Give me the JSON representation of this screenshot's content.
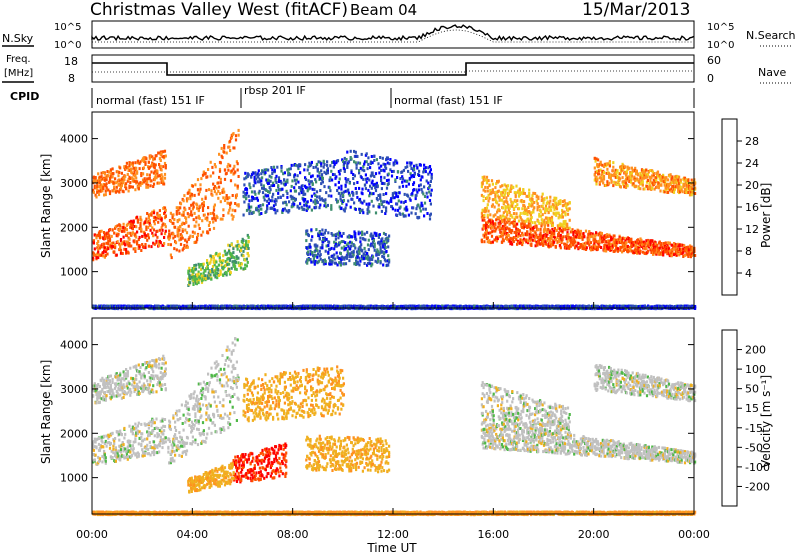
{
  "header": {
    "station": "Christmas Valley West (fitACF)",
    "beam": "Beam 04",
    "date": "15/Mar/2013"
  },
  "strips": {
    "nsky_label": "N.Sky",
    "nsearch_label": "N.Search",
    "nsky_ticks": [
      "10^5",
      "10^0"
    ],
    "nsearch_ticks": [
      "10^5",
      "10^0"
    ],
    "freq_label_line1": "Freq.",
    "freq_label_line2": "[MHz]",
    "freq_ticks": [
      "18",
      "8"
    ],
    "nave_label": "Nave",
    "nave_ticks": [
      "60",
      "0"
    ],
    "cpid_label": "CPID",
    "cpid_segments": [
      {
        "label": "normal (fast) 151 IF",
        "start_hour": 0,
        "end_hour": 6
      },
      {
        "label": "rbsp 201 IF",
        "start_hour": 6,
        "end_hour": 12
      },
      {
        "label": "normal (fast) 151 IF",
        "start_hour": 12,
        "end_hour": 24
      }
    ]
  },
  "chart_data": [
    {
      "type": "heatmap",
      "panel": "power",
      "ylabel": "Slant Range [km]",
      "xlabel": "Time UT",
      "xlim_hours": [
        0,
        24
      ],
      "ylim_km": [
        180,
        4600
      ],
      "yticks": [
        "1000",
        "2000",
        "3000",
        "4000"
      ],
      "xticks": [
        "00:00",
        "04:00",
        "08:00",
        "12:00",
        "16:00",
        "20:00",
        "00:00"
      ],
      "colorbar_label": "Power [dB]",
      "colorbar_ticks": [
        "4",
        "8",
        "12",
        "16",
        "20",
        "24",
        "28"
      ],
      "colorbar_colors": [
        "#0000ff",
        "#2d4fb5",
        "#3e8e6e",
        "#4fb848",
        "#f0d020",
        "#ff9020",
        "#ff5000",
        "#ff0000"
      ],
      "scatter_bands": [
        {
          "t0": 0.0,
          "t1": 2.9,
          "r0": 2700,
          "r1": 3200,
          "r1end": 3800,
          "power": 24
        },
        {
          "t0": 0.0,
          "t1": 2.9,
          "r0": 1300,
          "r1": 1900,
          "r1end": 2500,
          "power": 26
        },
        {
          "t0": 3.0,
          "t1": 5.8,
          "r0": 1300,
          "r1": 2300,
          "r1end": 4300,
          "power": 24
        },
        {
          "t0": 3.8,
          "t1": 6.2,
          "r0": 700,
          "r1": 1100,
          "r1end": 1900,
          "power": 14
        },
        {
          "t0": 6.0,
          "t1": 10.0,
          "r0": 2300,
          "r1": 3300,
          "r1end": 3600,
          "power": 6
        },
        {
          "t0": 8.5,
          "t1": 11.8,
          "r0": 1200,
          "r1": 2000,
          "r1end": 1900,
          "power": 6
        },
        {
          "t0": 10.0,
          "t1": 13.5,
          "r0": 2400,
          "r1": 3800,
          "r1end": 3400,
          "power": 5
        },
        {
          "t0": 15.5,
          "t1": 24.0,
          "r0": 1700,
          "r1": 2300,
          "r1end": 1600,
          "power": 26
        },
        {
          "t0": 15.5,
          "t1": 19.0,
          "r0": 2300,
          "r1": 3200,
          "r1end": 2600,
          "power": 20
        },
        {
          "t0": 20.0,
          "t1": 24.0,
          "r0": 3000,
          "r1": 3600,
          "r1end": 3100,
          "power": 22
        },
        {
          "t0": 0.0,
          "t1": 24.0,
          "r0": 200,
          "r1": 260,
          "r1end": 260,
          "power": 5
        }
      ]
    },
    {
      "type": "heatmap",
      "panel": "velocity",
      "ylabel": "Slant Range [km]",
      "xlabel": "Time UT",
      "xlim_hours": [
        0,
        24
      ],
      "ylim_km": [
        180,
        4600
      ],
      "yticks": [
        "1000",
        "2000",
        "3000",
        "4000"
      ],
      "xticks": [
        "00:00",
        "04:00",
        "08:00",
        "12:00",
        "16:00",
        "20:00",
        "00:00"
      ],
      "colorbar_label": "Velocity [m s⁻¹]",
      "colorbar_ticks": [
        "-200",
        "-100",
        "-50",
        "-15",
        "15",
        "50",
        "100",
        "200"
      ],
      "colorbar_colors": [
        "#ff0000",
        "#ff5000",
        "#ff9020",
        "#f0b020",
        "#c0c0c0",
        "#4fb848",
        "#3e8e6e",
        "#2d4fb5",
        "#0000ff"
      ],
      "scatter_bands": [
        {
          "t0": 0.0,
          "t1": 2.9,
          "r0": 2700,
          "r1": 3200,
          "r1end": 3800,
          "vel": 0
        },
        {
          "t0": 0.0,
          "t1": 2.9,
          "r0": 1300,
          "r1": 1900,
          "r1end": 2500,
          "vel": 0
        },
        {
          "t0": 3.0,
          "t1": 5.8,
          "r0": 1300,
          "r1": 2300,
          "r1end": 4300,
          "vel": 0
        },
        {
          "t0": 5.6,
          "t1": 7.7,
          "r0": 900,
          "r1": 1500,
          "r1end": 1800,
          "vel": -200
        },
        {
          "t0": 3.8,
          "t1": 5.6,
          "r0": 700,
          "r1": 1000,
          "r1end": 1400,
          "vel": -40
        },
        {
          "t0": 6.0,
          "t1": 10.0,
          "r0": 2300,
          "r1": 3300,
          "r1end": 3600,
          "vel": -40
        },
        {
          "t0": 8.5,
          "t1": 11.8,
          "r0": 1200,
          "r1": 2000,
          "r1end": 1900,
          "vel": -40
        },
        {
          "t0": 15.5,
          "t1": 24.0,
          "r0": 1700,
          "r1": 2300,
          "r1end": 1600,
          "vel": 0
        },
        {
          "t0": 15.5,
          "t1": 19.0,
          "r0": 2300,
          "r1": 3200,
          "r1end": 2600,
          "vel": 0
        },
        {
          "t0": 20.0,
          "t1": 24.0,
          "r0": 3000,
          "r1": 3600,
          "r1end": 3100,
          "vel": 0
        },
        {
          "t0": 0.0,
          "t1": 24.0,
          "r0": 200,
          "r1": 260,
          "r1end": 260,
          "vel": -60
        }
      ]
    }
  ]
}
